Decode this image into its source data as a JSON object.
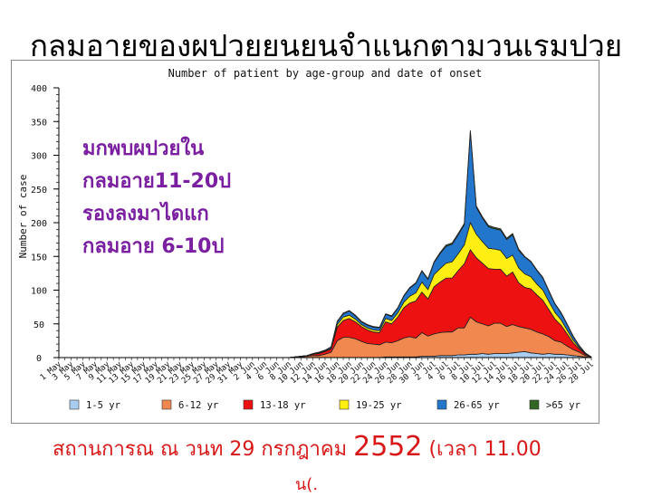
{
  "slide": {
    "title": "กลมอายของผปวยยนยนจำแนกตามวนเรมปวย",
    "footer_prefix": "สถานการณ ณ วนท 29 กรกฎาคม ",
    "footer_year": "2552",
    "footer_suffix": " (เวลา 11.00",
    "footer_line2": "น(."
  },
  "annotation": {
    "lines": [
      "มกพบผปวยใน",
      "กลมอาย11-20ป",
      "รองลงมาไดแก",
      "กลมอาย 6-10ป"
    ],
    "color": "#7a1fa0"
  },
  "chart_data": {
    "type": "area",
    "stacked": true,
    "title": "Number of patient by age-group and date of onset",
    "xlabel": "",
    "ylabel": "Number of case",
    "ylim": [
      0,
      400
    ],
    "yticks": [
      0,
      50,
      100,
      150,
      200,
      250,
      300,
      350,
      400
    ],
    "x_tick_labels": [
      "1 May",
      "3 May",
      "5 May",
      "7 May",
      "9 May",
      "11 May",
      "13 May",
      "15 May",
      "17 May",
      "19 May",
      "21 May",
      "23 May",
      "25 May",
      "27 May",
      "29 May",
      "31 May",
      "2 Jun",
      "4 Jun",
      "6 Jun",
      "8 Jun",
      "10 Jun",
      "12 Jun",
      "14 Jun",
      "16 Jun",
      "18 Jun",
      "20 Jun",
      "22 Jun",
      "24 Jun",
      "26 Jun",
      "28 Jun",
      "30 Jun",
      "2 Jul",
      "4 Jul",
      "6 Jul",
      "8 Jul",
      "10 Jul",
      "12 Jul",
      "14 Jul",
      "16 Jul",
      "18 Jul",
      "20 Jul",
      "22 Jul",
      "24 Jul",
      "26 Jul",
      "28 Jul"
    ],
    "x_start": "1 May",
    "days": 89,
    "series": [
      {
        "name": "1-5 yr",
        "color": "#aaccee",
        "values": [
          0,
          0,
          0,
          0,
          0,
          0,
          0,
          0,
          0,
          0,
          0,
          0,
          0,
          0,
          0,
          0,
          0,
          0,
          0,
          0,
          0,
          0,
          0,
          0,
          0,
          0,
          0,
          0,
          0,
          0,
          0,
          0,
          0,
          0,
          0,
          0,
          0,
          0,
          0,
          0,
          0,
          0,
          0,
          0,
          0,
          0,
          0,
          0,
          0,
          0,
          0,
          0,
          0,
          0,
          1,
          1,
          1,
          1,
          1,
          1,
          2,
          2,
          2,
          3,
          3,
          3,
          4,
          4,
          5,
          5,
          6,
          5,
          6,
          6,
          6,
          7,
          8,
          9,
          7,
          6,
          5,
          6,
          5,
          5,
          4,
          3,
          2,
          1,
          0
        ]
      },
      {
        "name": "6-12 yr",
        "color": "#f08850",
        "values": [
          0,
          0,
          0,
          0,
          0,
          0,
          0,
          0,
          0,
          0,
          0,
          0,
          0,
          0,
          0,
          0,
          0,
          0,
          0,
          0,
          0,
          0,
          0,
          0,
          0,
          0,
          0,
          0,
          0,
          0,
          0,
          0,
          0,
          0,
          0,
          0,
          0,
          0,
          0,
          1,
          1,
          2,
          3,
          3,
          5,
          8,
          25,
          30,
          30,
          28,
          24,
          21,
          20,
          19,
          22,
          21,
          24,
          28,
          30,
          28,
          35,
          30,
          33,
          34,
          35,
          35,
          40,
          40,
          55,
          48,
          44,
          42,
          45,
          45,
          40,
          42,
          38,
          35,
          35,
          32,
          30,
          25,
          20,
          18,
          13,
          9,
          6,
          2,
          1
        ]
      },
      {
        "name": "13-18 yr",
        "color": "#ee1111",
        "values": [
          0,
          0,
          0,
          0,
          0,
          0,
          0,
          0,
          0,
          0,
          0,
          0,
          0,
          0,
          0,
          0,
          0,
          0,
          0,
          0,
          0,
          0,
          0,
          0,
          0,
          0,
          0,
          0,
          0,
          0,
          0,
          0,
          0,
          0,
          0,
          0,
          0,
          0,
          0,
          0,
          1,
          1,
          2,
          3,
          4,
          5,
          20,
          25,
          28,
          25,
          22,
          20,
          18,
          18,
          30,
          28,
          35,
          45,
          50,
          55,
          60,
          55,
          70,
          75,
          80,
          80,
          85,
          95,
          100,
          95,
          90,
          85,
          80,
          80,
          75,
          78,
          65,
          60,
          60,
          55,
          50,
          40,
          32,
          25,
          18,
          10,
          5,
          2,
          0
        ]
      },
      {
        "name": "19-25 yr",
        "color": "#ffee11",
        "values": [
          0,
          0,
          0,
          0,
          0,
          0,
          0,
          0,
          0,
          0,
          0,
          0,
          0,
          0,
          0,
          0,
          0,
          0,
          0,
          0,
          0,
          0,
          0,
          0,
          0,
          0,
          0,
          0,
          0,
          0,
          0,
          0,
          0,
          0,
          0,
          0,
          0,
          0,
          0,
          0,
          0,
          0,
          0,
          1,
          1,
          1,
          4,
          5,
          5,
          4,
          3,
          3,
          3,
          3,
          5,
          5,
          6,
          8,
          10,
          12,
          15,
          14,
          18,
          20,
          22,
          24,
          25,
          28,
          40,
          35,
          32,
          30,
          30,
          28,
          26,
          25,
          22,
          20,
          18,
          16,
          15,
          12,
          10,
          8,
          6,
          4,
          2,
          1,
          0
        ]
      },
      {
        "name": "26-65 yr",
        "color": "#2277cc",
        "values": [
          0,
          0,
          0,
          0,
          0,
          0,
          0,
          0,
          0,
          0,
          0,
          0,
          0,
          0,
          0,
          0,
          0,
          0,
          0,
          0,
          0,
          0,
          0,
          0,
          0,
          0,
          0,
          0,
          0,
          0,
          0,
          0,
          0,
          0,
          0,
          0,
          0,
          0,
          0,
          0,
          0,
          0,
          1,
          1,
          1,
          2,
          4,
          5,
          6,
          5,
          4,
          4,
          4,
          4,
          6,
          6,
          7,
          9,
          12,
          14,
          16,
          15,
          18,
          22,
          25,
          26,
          28,
          30,
          135,
          40,
          35,
          32,
          30,
          30,
          28,
          30,
          26,
          25,
          22,
          20,
          18,
          15,
          12,
          10,
          8,
          5,
          3,
          1,
          0
        ]
      },
      {
        "name": ">65 yr",
        "color": "#336622",
        "values": [
          0,
          0,
          0,
          0,
          0,
          0,
          0,
          0,
          0,
          0,
          0,
          0,
          0,
          0,
          0,
          0,
          0,
          0,
          0,
          0,
          0,
          0,
          0,
          0,
          0,
          0,
          0,
          0,
          0,
          0,
          0,
          0,
          0,
          0,
          0,
          0,
          0,
          0,
          0,
          0,
          0,
          0,
          0,
          0,
          0,
          0,
          1,
          1,
          1,
          1,
          1,
          1,
          1,
          1,
          1,
          1,
          1,
          1,
          1,
          1,
          1,
          1,
          1,
          2,
          2,
          2,
          2,
          2,
          2,
          2,
          2,
          2,
          2,
          2,
          2,
          2,
          2,
          1,
          1,
          1,
          1,
          1,
          1,
          1,
          1,
          1,
          0,
          0,
          0
        ]
      }
    ],
    "legend_position": "bottom",
    "grid": false
  }
}
